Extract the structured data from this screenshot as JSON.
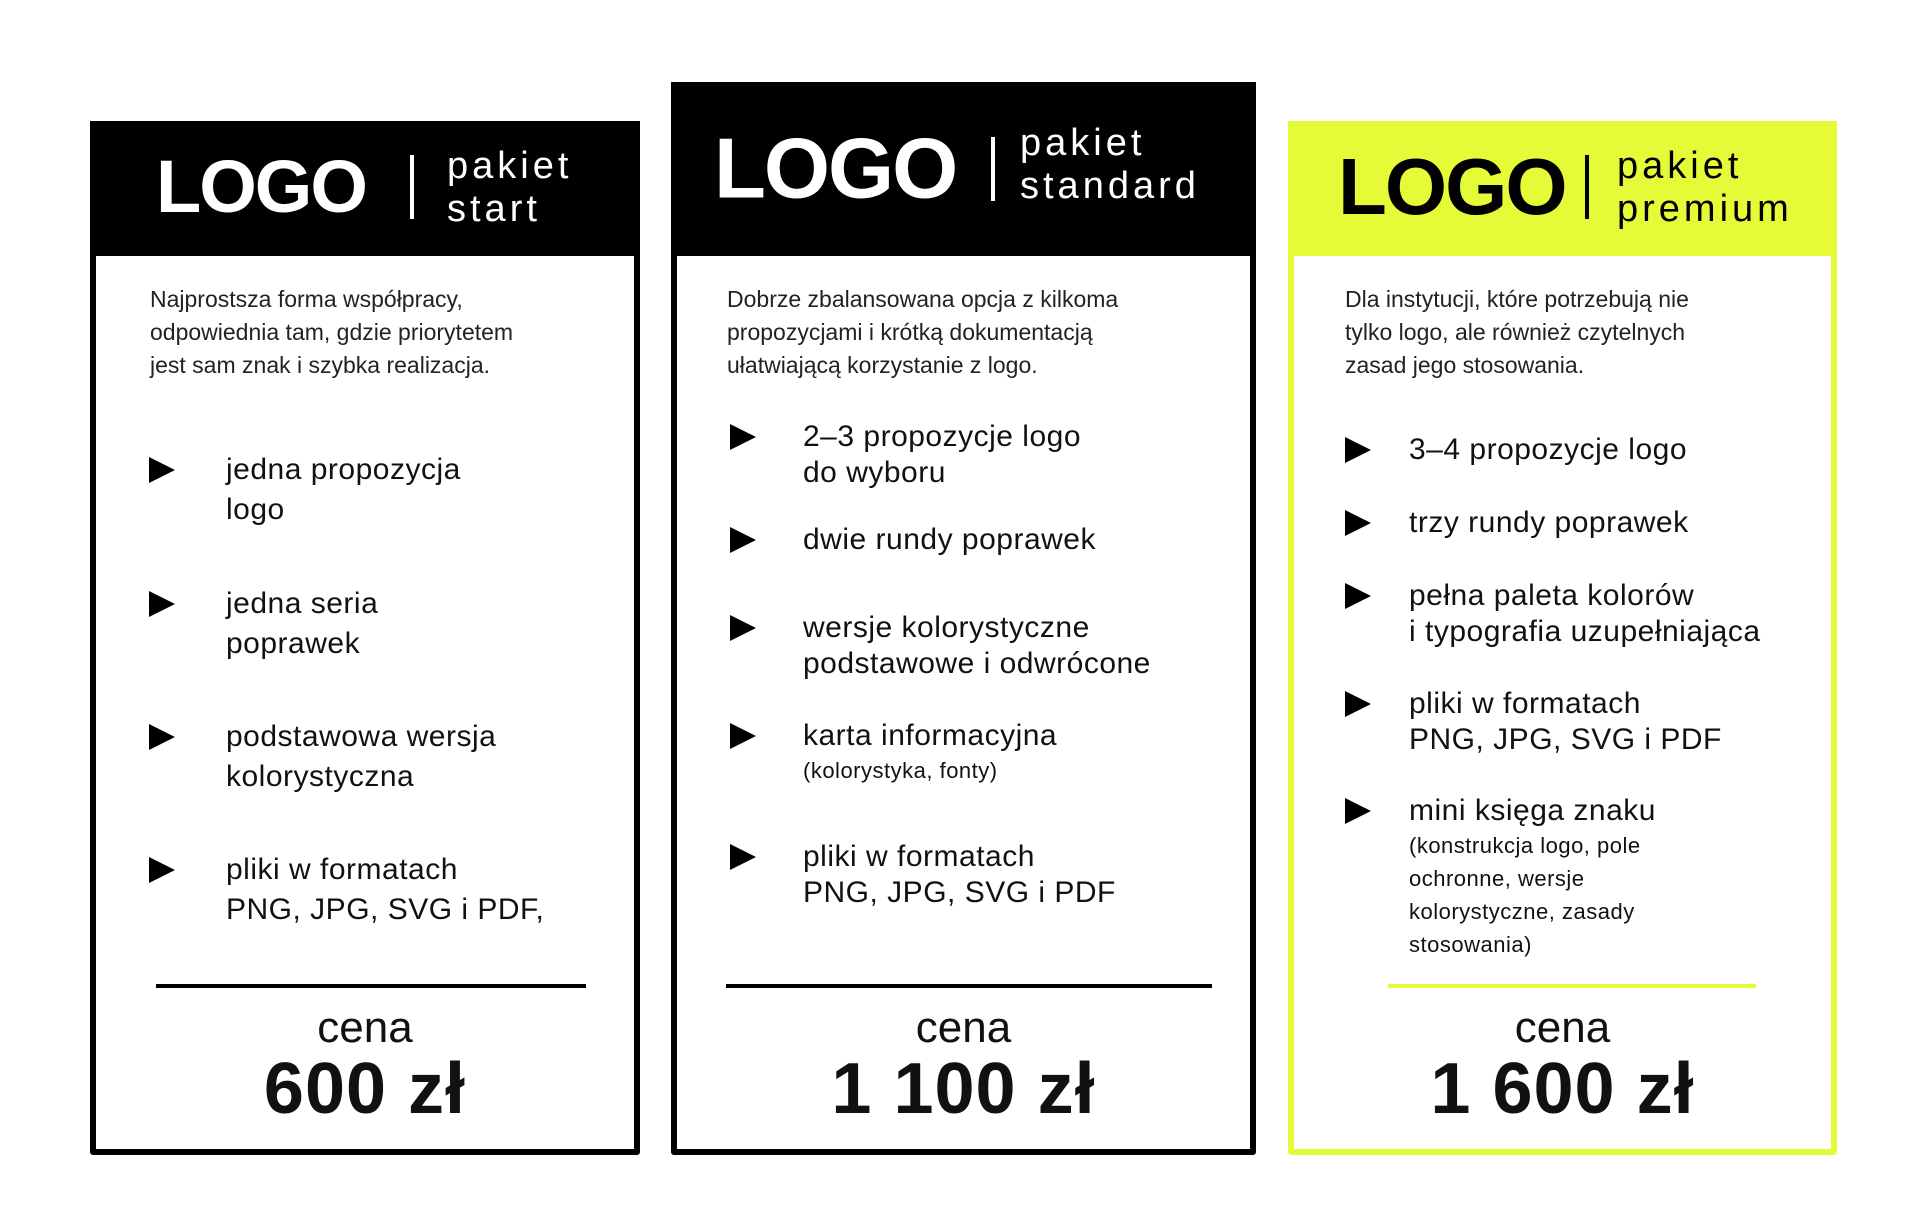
{
  "colors": {
    "accent": "#e6fb38",
    "dark": "#000000"
  },
  "packages": [
    {
      "logo": "LOGO",
      "label_line1": "pakiet",
      "label_line2": "start",
      "description": [
        "Najprostsza forma współpracy,",
        "odpowiednia tam, gdzie priorytetem",
        "jest sam znak i szybka realizacja."
      ],
      "features": [
        {
          "lines": [
            "jedna propozycja",
            "logo"
          ]
        },
        {
          "lines": [
            "jedna seria",
            "poprawek"
          ]
        },
        {
          "lines": [
            "podstawowa wersja",
            "kolorystyczna"
          ]
        },
        {
          "lines": [
            "pliki w formatach",
            "PNG, JPG, SVG i PDF,"
          ]
        }
      ],
      "price_label": "cena",
      "price": "600 zł"
    },
    {
      "logo": "LOGO",
      "label_line1": "pakiet",
      "label_line2": "standard",
      "description": [
        "Dobrze zbalansowana opcja z kilkoma",
        "propozycjami i krótką dokumentacją",
        "ułatwiającą korzystanie z logo."
      ],
      "features": [
        {
          "lines": [
            "2–3 propozycje logo",
            "do wyboru"
          ]
        },
        {
          "lines": [
            "dwie rundy poprawek"
          ]
        },
        {
          "lines": [
            "wersje kolorystyczne",
            "podstawowe i odwrócone"
          ]
        },
        {
          "lines": [
            "karta informacyjna"
          ],
          "sub": [
            "(kolorystyka, fonty)"
          ]
        },
        {
          "lines": [
            "pliki w formatach",
            "PNG, JPG, SVG i PDF"
          ]
        }
      ],
      "price_label": "cena",
      "price": "1 100 zł"
    },
    {
      "logo": "LOGO",
      "label_line1": "pakiet",
      "label_line2": "premium",
      "description": [
        "Dla instytucji, które potrzebują nie",
        "tylko logo, ale również czytelnych",
        "zasad jego stosowania."
      ],
      "features": [
        {
          "lines": [
            "3–4 propozycje logo"
          ]
        },
        {
          "lines": [
            "trzy rundy poprawek"
          ]
        },
        {
          "lines": [
            "pełna paleta kolorów",
            "i typografia uzupełniająca"
          ]
        },
        {
          "lines": [
            "pliki w formatach",
            "PNG, JPG, SVG i PDF"
          ]
        },
        {
          "lines": [
            "mini księga znaku"
          ],
          "sub": [
            "(konstrukcja logo, pole",
            "ochronne, wersje",
            "kolorystyczne, zasady",
            "stosowania)"
          ]
        }
      ],
      "price_label": "cena",
      "price": "1 600 zł"
    }
  ]
}
